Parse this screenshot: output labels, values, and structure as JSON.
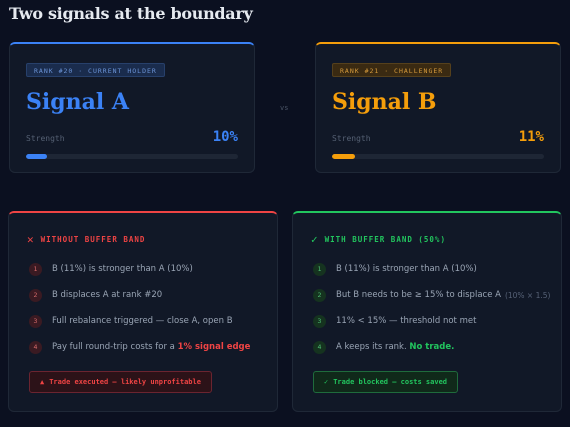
{
  "title": "Two signals at the boundary",
  "vs": "vs",
  "signal_a": {
    "tag": "RANK #20 · CURRENT HOLDER",
    "name": "Signal A",
    "strength_label": "Strength",
    "strength": "10%",
    "strength_fraction": 0.1,
    "color": "#3b82f6"
  },
  "signal_b": {
    "tag": "RANK #21 · CHALLENGER",
    "name": "Signal B",
    "strength_label": "Strength",
    "strength": "11%",
    "strength_fraction": 0.11,
    "color": "#f59e0b"
  },
  "without": {
    "icon": "x-icon",
    "heading": "WITHOUT BUFFER BAND",
    "steps": [
      {
        "n": "1",
        "text": "B (11%) is stronger than A (10%)"
      },
      {
        "n": "2",
        "text": "B displaces A at rank #20"
      },
      {
        "n": "3",
        "text": "Full rebalance triggered — close A, open B"
      },
      {
        "n": "4",
        "text": "Pay full round-trip costs for a ",
        "highlight": "1% signal edge"
      }
    ],
    "result": "Trade executed — likely unprofitable",
    "color": "#ef4444"
  },
  "with": {
    "icon": "check-icon",
    "heading": "WITH BUFFER BAND (50%)",
    "steps": [
      {
        "n": "1",
        "text": "B (11%) is stronger than A (10%)"
      },
      {
        "n": "2",
        "text": "But B needs to be ≥ 15% to displace A",
        "note": "(10% × 1.5)"
      },
      {
        "n": "3",
        "text": "11% < 15% — threshold not met"
      },
      {
        "n": "4",
        "text": "A keeps its rank. ",
        "highlight": "No trade."
      }
    ],
    "result": "Trade blocked — costs saved",
    "color": "#22c55e"
  }
}
